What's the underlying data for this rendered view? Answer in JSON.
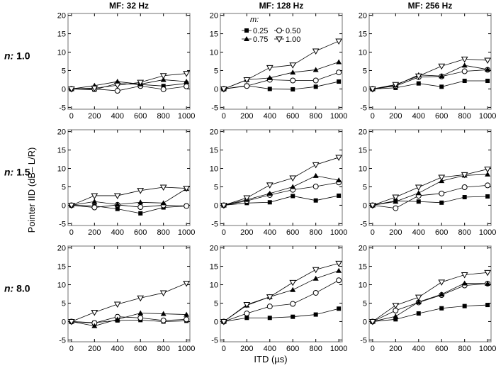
{
  "chart_data": {
    "type": "line",
    "ylabel": "Pointer IID (dB– L/R)",
    "xlabel": "ITD (µs)",
    "x": [
      0,
      200,
      400,
      600,
      800,
      1000
    ],
    "xticks": [
      0,
      200,
      400,
      600,
      800,
      1000
    ],
    "yticks": [
      -5,
      0,
      5,
      10,
      15,
      20
    ],
    "xlim": [
      -30,
      1030
    ],
    "ylim": [
      -5.5,
      20.5
    ],
    "grid": false,
    "columns": [
      "MF: 32 Hz",
      "MF: 128 Hz",
      "MF: 256 Hz"
    ],
    "rows": [
      {
        "prefix": "n:",
        "value": "1.0"
      },
      {
        "prefix": "n:",
        "value": "1.5"
      },
      {
        "prefix": "n:",
        "value": "8.0"
      }
    ],
    "legend": {
      "title": "m:",
      "placement": "top panel MF 128 Hz, top-left",
      "entries": [
        {
          "label": "0.25",
          "marker": "filled-square"
        },
        {
          "label": "0.50",
          "marker": "open-circle"
        },
        {
          "label": "0.75",
          "marker": "filled-triangle-up"
        },
        {
          "label": "1.00",
          "marker": "open-triangle-down"
        }
      ]
    },
    "panels": [
      [
        {
          "series": [
            [
              0,
              -0.2,
              1.5,
              1.2,
              0.8,
              1.5
            ],
            [
              0,
              0,
              -0.5,
              0.8,
              -0.1,
              0.7
            ],
            [
              0,
              0.9,
              2,
              1.3,
              2.5,
              2
            ],
            [
              0,
              0.2,
              1,
              1.8,
              3.6,
              4.2
            ]
          ]
        },
        {
          "series": [
            [
              0,
              0.9,
              0,
              -0.1,
              0.6,
              2
            ],
            [
              0,
              0.8,
              2.5,
              2.3,
              2.3,
              4.5
            ],
            [
              0,
              2.5,
              3,
              4.5,
              5.2,
              7.3
            ],
            [
              0,
              2.5,
              5.8,
              6.5,
              10.3,
              13
            ]
          ]
        },
        {
          "series": [
            [
              0,
              0.3,
              1.5,
              0.6,
              2.2,
              2.2
            ],
            [
              0,
              0.8,
              3.2,
              3.4,
              4.8,
              5.2
            ],
            [
              0,
              1,
              3.8,
              3.5,
              6.4,
              5.3
            ],
            [
              0,
              1.2,
              3.5,
              6.2,
              8.1,
              7.8
            ]
          ]
        }
      ],
      [
        {
          "series": [
            [
              0,
              -0.2,
              -1,
              -2.2,
              -0.6,
              -0.2
            ],
            [
              0,
              -0.6,
              0.1,
              -0.5,
              0,
              -0.2
            ],
            [
              0,
              1,
              0.2,
              0.8,
              0.6,
              4.5
            ],
            [
              0,
              2.6,
              2.6,
              4,
              4.9,
              4.6
            ]
          ]
        },
        {
          "series": [
            [
              0,
              0.6,
              0.8,
              2.5,
              1.3,
              2.6
            ],
            [
              0,
              1.2,
              2.8,
              4.2,
              5.1,
              6.2
            ],
            [
              0,
              1.5,
              3.2,
              5,
              8,
              6.8
            ],
            [
              0,
              2,
              5.5,
              7.4,
              11,
              13
            ]
          ]
        },
        {
          "series": [
            [
              0,
              1.2,
              1,
              0.7,
              2.2,
              2.4
            ],
            [
              0,
              -0.8,
              2.6,
              3.2,
              4.9,
              5.4
            ],
            [
              0,
              1,
              3.3,
              6.6,
              8.1,
              8.4
            ],
            [
              0,
              2.2,
              4.9,
              7.6,
              8.3,
              9.8
            ]
          ]
        }
      ],
      [
        {
          "series": [
            [
              0,
              -0.3,
              0.3,
              0.4,
              0,
              0.2
            ],
            [
              0,
              -0.4,
              1.3,
              1,
              0.3,
              0.6
            ],
            [
              0,
              -1.2,
              0.6,
              2.3,
              2.1,
              1.9
            ],
            [
              0,
              2.5,
              4.7,
              6.4,
              7.8,
              10.4
            ]
          ]
        },
        {
          "series": [
            [
              0,
              1,
              1,
              1.3,
              1.9,
              3.5
            ],
            [
              0,
              2.2,
              4.1,
              4.8,
              7.8,
              11.2
            ],
            [
              0,
              4.4,
              6.7,
              8.6,
              11.7,
              13.8
            ],
            [
              0,
              4.6,
              6.7,
              10.6,
              14.1,
              15.8
            ]
          ]
        },
        {
          "series": [
            [
              0,
              0.6,
              2.2,
              3.6,
              4.2,
              4.5
            ],
            [
              0,
              3,
              5.2,
              7.2,
              9.8,
              10.3
            ],
            [
              0,
              1.4,
              5.3,
              7.4,
              10.4,
              10.3
            ],
            [
              0,
              4.4,
              6.6,
              10.7,
              12.7,
              13.3
            ]
          ]
        }
      ]
    ],
    "colors": {
      "axis": "#000000",
      "line": "#000000",
      "frame": "#888888"
    }
  }
}
